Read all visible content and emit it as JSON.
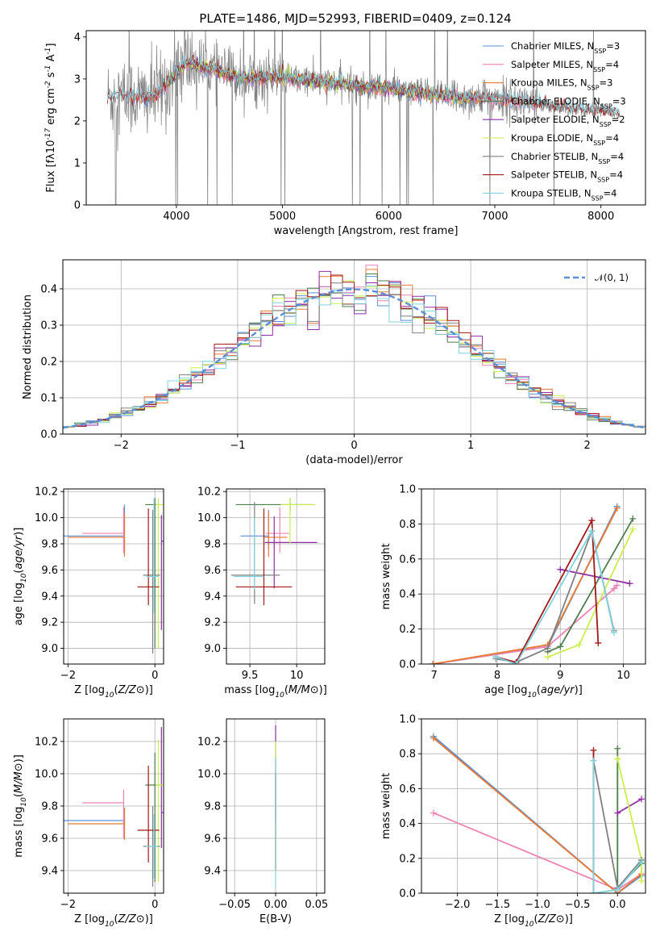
{
  "colors": {
    "chabrier_miles": "#5b8ed8",
    "salpeter_miles": "#ee82b4",
    "kroupa_miles": "#e87a34",
    "chabrier_elodie": "#4e7d4e",
    "salpeter_elodie": "#8e2ea3",
    "kroupa_elodie": "#c9f04a",
    "chabrier_stelib": "#808080",
    "salpeter_stelib": "#a31717",
    "kroupa_stelib": "#7fd4e0",
    "data": "#808080",
    "normal": "#5b8ed8"
  },
  "chart_data": [
    {
      "id": "spectrum",
      "type": "line",
      "title": "PLATE=1486, MJD=52993, FIBERID=0409, z=0.124",
      "xlabel": "wavelength [Angstrom, rest frame]",
      "ylabel": "Flux [f$_\\lambda$10$^{-17}$ erg cm$^{-2}$ s$^{-1}$ A$^{-1}$]",
      "xlim": [
        3150,
        8420
      ],
      "ylim": [
        0,
        4.15
      ],
      "xticks": [
        4000,
        5000,
        6000,
        7000,
        8000
      ],
      "yticks": [
        0,
        1,
        2,
        3,
        4
      ],
      "grid": false,
      "legend_position": "upper-right",
      "legend": [
        {
          "key": "chabrier_miles",
          "label": "Chabrier MILES, N",
          "sub": "SSP",
          "tail": "=3"
        },
        {
          "key": "salpeter_miles",
          "label": "Salpeter MILES, N",
          "sub": "SSP",
          "tail": "=4"
        },
        {
          "key": "kroupa_miles",
          "label": "Kroupa MILES, N",
          "sub": "SSP",
          "tail": "=3"
        },
        {
          "key": "chabrier_elodie",
          "label": "Chabrier ELODIE, N",
          "sub": "SSP",
          "tail": "=3"
        },
        {
          "key": "salpeter_elodie",
          "label": "Salpeter ELODIE, N",
          "sub": "SSP",
          "tail": "=2"
        },
        {
          "key": "kroupa_elodie",
          "label": "Kroupa ELODIE, N",
          "sub": "SSP",
          "tail": "=4"
        },
        {
          "key": "chabrier_stelib",
          "label": "Chabrier STELIB, N",
          "sub": "SSP",
          "tail": "=4"
        },
        {
          "key": "salpeter_stelib",
          "label": "Salpeter STELIB, N",
          "sub": "SSP",
          "tail": "=4"
        },
        {
          "key": "kroupa_stelib",
          "label": "Kroupa STELIB, N",
          "sub": "SSP",
          "tail": "=4"
        }
      ],
      "continuum": {
        "x": [
          3350,
          3500,
          3650,
          3800,
          3950,
          4100,
          4300,
          4500,
          4700,
          4900,
          5100,
          5300,
          5500,
          5700,
          5900,
          6100,
          6300,
          6500,
          6700,
          6900,
          7100,
          7300,
          7500,
          7700,
          7900,
          8100,
          8180
        ],
        "y": [
          2.55,
          2.6,
          2.55,
          2.6,
          3.0,
          3.4,
          3.25,
          3.1,
          3.0,
          3.05,
          3.0,
          2.95,
          2.9,
          2.85,
          2.8,
          2.75,
          2.65,
          2.6,
          2.55,
          2.55,
          2.5,
          2.45,
          2.35,
          2.3,
          2.25,
          2.2,
          2.15
        ]
      }
    },
    {
      "id": "residuals",
      "type": "histogram",
      "xlabel": "(data-model)/error",
      "ylabel": "Normed distribution",
      "xlim": [
        -2.5,
        2.5
      ],
      "ylim": [
        0,
        0.48
      ],
      "xticks": [
        -2,
        -1,
        0,
        1,
        2
      ],
      "yticks": [
        0.0,
        0.1,
        0.2,
        0.3,
        0.4
      ],
      "grid": true,
      "legend_position": "upper-right",
      "legend_label": "𝒩(0, 1)",
      "bin_width": 0.1
    },
    {
      "id": "age_vs_Z",
      "type": "errorbar",
      "xlabel": "Z [log$_{10}$($Z/Z_\\odot$)]",
      "ylabel": "age  [log$_{10}$($age/yr$)]",
      "xlim": [
        -2.1,
        0.2
      ],
      "ylim": [
        8.88,
        10.22
      ],
      "xticks": [
        -2,
        0
      ],
      "yticks": [
        9.0,
        9.2,
        9.4,
        9.6,
        9.8,
        10.0,
        10.2
      ],
      "grid": true,
      "points": [
        {
          "key": "chabrier_miles",
          "x": -0.7,
          "xerr": [
            1.4,
            0
          ],
          "y": 9.86,
          "yerr": [
            0.15,
            0.24
          ]
        },
        {
          "key": "salpeter_miles",
          "x": -0.72,
          "xerr": [
            0.95,
            0
          ],
          "y": 9.88,
          "yerr": [
            0.15,
            0.2
          ]
        },
        {
          "key": "kroupa_miles",
          "x": -0.7,
          "xerr": [
            1.3,
            0
          ],
          "y": 9.85,
          "yerr": [
            0.15,
            0.18
          ]
        },
        {
          "key": "chabrier_elodie",
          "x": 0.0,
          "xerr": [
            0.22,
            0.12
          ],
          "y": 10.1,
          "yerr": [
            1.1,
            0.05
          ]
        },
        {
          "key": "salpeter_elodie",
          "x": 0.15,
          "xerr": [
            0.0,
            0.2
          ],
          "y": 9.82,
          "yerr": [
            0.68,
            0.2
          ]
        },
        {
          "key": "kroupa_elodie",
          "x": 0.08,
          "xerr": [
            0.06,
            0.18
          ],
          "y": 10.1,
          "yerr": [
            1.1,
            0.05
          ]
        },
        {
          "key": "chabrier_stelib",
          "x": -0.05,
          "xerr": [
            0.22,
            0.17
          ],
          "y": 9.56,
          "yerr": [
            0.6,
            0.5
          ]
        },
        {
          "key": "salpeter_stelib",
          "x": -0.15,
          "xerr": [
            0.25,
            0.25
          ],
          "y": 9.47,
          "yerr": [
            0.14,
            0.6
          ]
        },
        {
          "key": "kroupa_stelib",
          "x": -0.02,
          "xerr": [
            0.18,
            0.1
          ],
          "y": 9.55,
          "yerr": [
            0.28,
            0.6
          ]
        }
      ]
    },
    {
      "id": "age_vs_mass",
      "type": "errorbar",
      "xlabel": "mass [log$_{10}$($M/M_\\odot$)]",
      "ylabel": "",
      "xlim": [
        9.25,
        10.3
      ],
      "ylim": [
        8.88,
        10.22
      ],
      "xticks": [
        9.5,
        10.0
      ],
      "yticks": [
        9.0,
        9.2,
        9.4,
        9.6,
        9.8,
        10.0,
        10.2
      ],
      "grid": true,
      "points": [
        {
          "key": "chabrier_miles",
          "x": 9.7,
          "xerr": [
            0.3,
            0.0
          ],
          "y": 9.86,
          "yerr": [
            0.1,
            0.2
          ]
        },
        {
          "key": "salpeter_miles",
          "x": 9.82,
          "xerr": [
            0.15,
            0.1
          ],
          "y": 9.88,
          "yerr": [
            0.15,
            0.2
          ]
        },
        {
          "key": "kroupa_miles",
          "x": 9.7,
          "xerr": [
            0.05,
            0.2
          ],
          "y": 9.85,
          "yerr": [
            0.15,
            0.2
          ]
        },
        {
          "key": "chabrier_elodie",
          "x": 9.93,
          "xerr": [
            0.58,
            0.25
          ],
          "y": 10.1,
          "yerr": [
            0.05,
            0.05
          ]
        },
        {
          "key": "salpeter_elodie",
          "x": 9.76,
          "xerr": [
            0.1,
            0.46
          ],
          "y": 9.81,
          "yerr": [
            0.35,
            0.2
          ]
        },
        {
          "key": "kroupa_elodie",
          "x": 9.93,
          "xerr": [
            0.1,
            0.27
          ],
          "y": 10.1,
          "yerr": [
            0.3,
            0.05
          ]
        },
        {
          "key": "chabrier_stelib",
          "x": 9.55,
          "xerr": [
            0.25,
            0.27
          ],
          "y": 9.56,
          "yerr": [
            0.22,
            0.56
          ]
        },
        {
          "key": "salpeter_stelib",
          "x": 9.65,
          "xerr": [
            0.3,
            0.3
          ],
          "y": 9.47,
          "yerr": [
            0.14,
            0.6
          ]
        },
        {
          "key": "kroupa_stelib",
          "x": 9.55,
          "xerr": [
            0.22,
            0.1
          ],
          "y": 9.55,
          "yerr": [
            0.1,
            0.45
          ]
        }
      ]
    },
    {
      "id": "weight_vs_age",
      "type": "line",
      "xlabel": "age  [log$_{10}$($age/yr$)]",
      "ylabel": "mass weight",
      "xlim": [
        6.8,
        10.35
      ],
      "ylim": [
        0,
        1.0
      ],
      "xticks": [
        7,
        8,
        9,
        10
      ],
      "yticks": [
        0.0,
        0.2,
        0.4,
        0.6,
        0.8,
        1.0
      ],
      "grid": true,
      "series": [
        {
          "key": "chabrier_miles",
          "x": [
            6.98,
            8.8,
            9.9
          ],
          "y": [
            0.0,
            0.1,
            0.9
          ]
        },
        {
          "key": "salpeter_miles",
          "x": [
            6.98,
            8.8,
            9.85,
            9.9
          ],
          "y": [
            0.0,
            0.1,
            0.43,
            0.45
          ]
        },
        {
          "key": "kroupa_miles",
          "x": [
            6.98,
            8.8,
            9.9
          ],
          "y": [
            0.0,
            0.11,
            0.89
          ]
        },
        {
          "key": "chabrier_elodie",
          "x": [
            8.8,
            9.0,
            10.15
          ],
          "y": [
            0.07,
            0.1,
            0.83
          ]
        },
        {
          "key": "salpeter_elodie",
          "x": [
            9.0,
            10.1
          ],
          "y": [
            0.54,
            0.46
          ]
        },
        {
          "key": "kroupa_elodie",
          "x": [
            8.8,
            9.3,
            10.15
          ],
          "y": [
            0.04,
            0.11,
            0.77
          ]
        },
        {
          "key": "chabrier_stelib",
          "x": [
            7.98,
            8.3,
            8.8,
            9.5,
            9.85
          ],
          "y": [
            0.03,
            0.01,
            0.09,
            0.76,
            0.19
          ]
        },
        {
          "key": "salpeter_stelib",
          "x": [
            7.98,
            8.3,
            9.5,
            9.6
          ],
          "y": [
            0.04,
            0.01,
            0.82,
            0.12
          ]
        },
        {
          "key": "kroupa_stelib",
          "x": [
            7.98,
            8.3,
            9.5,
            9.85
          ],
          "y": [
            0.04,
            0.0,
            0.76,
            0.18
          ]
        }
      ]
    },
    {
      "id": "mass_vs_Z",
      "type": "errorbar",
      "xlabel": "Z [log$_{10}$($Z/Z_\\odot$)]",
      "ylabel": "mass [log$_{10}$($M/M_\\odot$)]",
      "xlim": [
        -2.1,
        0.2
      ],
      "ylim": [
        9.26,
        10.34
      ],
      "xticks": [
        -2,
        0
      ],
      "yticks": [
        9.4,
        9.6,
        9.8,
        10.0,
        10.2
      ],
      "grid": true,
      "points": [
        {
          "key": "chabrier_miles",
          "x": -0.7,
          "xerr": [
            1.4,
            0
          ],
          "y": 9.71,
          "yerr": [
            0.08,
            0.08
          ]
        },
        {
          "key": "salpeter_miles",
          "x": -0.72,
          "xerr": [
            0.95,
            0
          ],
          "y": 9.82,
          "yerr": [
            0.22,
            0.08
          ]
        },
        {
          "key": "kroupa_miles",
          "x": -0.7,
          "xerr": [
            1.3,
            0
          ],
          "y": 9.69,
          "yerr": [
            0.1,
            0.1
          ]
        },
        {
          "key": "chabrier_elodie",
          "x": 0.0,
          "xerr": [
            0.22,
            0.12
          ],
          "y": 9.93,
          "yerr": [
            0.6,
            0.2
          ]
        },
        {
          "key": "salpeter_elodie",
          "x": 0.15,
          "xerr": [
            0.0,
            0.2
          ],
          "y": 9.76,
          "yerr": [
            0.22,
            0.53
          ]
        },
        {
          "key": "kroupa_elodie",
          "x": 0.08,
          "xerr": [
            0.06,
            0.18
          ],
          "y": 9.93,
          "yerr": [
            0.6,
            0.28
          ]
        },
        {
          "key": "chabrier_stelib",
          "x": -0.05,
          "xerr": [
            0.22,
            0.17
          ],
          "y": 9.55,
          "yerr": [
            0.25,
            0.25
          ]
        },
        {
          "key": "salpeter_stelib",
          "x": -0.15,
          "xerr": [
            0.25,
            0.25
          ],
          "y": 9.65,
          "yerr": [
            0.2,
            0.4
          ]
        },
        {
          "key": "kroupa_stelib",
          "x": -0.02,
          "xerr": [
            0.18,
            0.1
          ],
          "y": 9.55,
          "yerr": [
            0.2,
            0.2
          ]
        }
      ]
    },
    {
      "id": "mass_vs_ebv",
      "type": "errorbar",
      "xlabel": "E(B-V)",
      "ylabel": "",
      "xlim": [
        -0.06,
        0.06
      ],
      "ylim": [
        9.26,
        10.34
      ],
      "xticks": [
        -0.05,
        0.0,
        0.05
      ],
      "xticklabels": [
        "−0.05",
        "0.00",
        "0.05"
      ],
      "yticks": [
        9.4,
        9.6,
        9.8,
        10.0,
        10.2
      ],
      "grid": true,
      "points": [
        {
          "key": "chabrier_miles",
          "x": 0.0,
          "xerr": [
            0,
            0
          ],
          "y": 9.71,
          "yerr": [
            0.3,
            0.3
          ]
        },
        {
          "key": "salpeter_elodie",
          "x": 0.0,
          "xerr": [
            0,
            0
          ],
          "y": 10.1,
          "yerr": [
            0.4,
            0.2
          ]
        },
        {
          "key": "kroupa_elodie",
          "x": 0.0,
          "xerr": [
            0,
            0
          ],
          "y": 10.0,
          "yerr": [
            0.6,
            0.2
          ]
        },
        {
          "key": "salpeter_stelib",
          "x": 0.0,
          "xerr": [
            0,
            0
          ],
          "y": 9.9,
          "yerr": [
            0.5,
            0.1
          ]
        },
        {
          "key": "kroupa_stelib",
          "x": 0.0,
          "xerr": [
            0,
            0
          ],
          "y": 9.6,
          "yerr": [
            0.3,
            0.5
          ]
        }
      ]
    },
    {
      "id": "weight_vs_Z",
      "type": "line",
      "xlabel": "Z [log$_{10}$($Z/Z_\\odot$)]",
      "ylabel": "mass weight",
      "xlim": [
        -2.45,
        0.35
      ],
      "ylim": [
        0,
        1.0
      ],
      "xticks": [
        -2.0,
        -1.5,
        -1.0,
        -0.5,
        0.0
      ],
      "xticklabels": [
        "−2.0",
        "−1.5",
        "−1.0",
        "−0.5",
        "0.0"
      ],
      "yticks": [
        0.0,
        0.2,
        0.4,
        0.6,
        0.8,
        1.0
      ],
      "grid": true,
      "series": [
        {
          "key": "chabrier_miles",
          "x": [
            -2.3,
            0.0,
            0.3
          ],
          "y": [
            0.9,
            0.0,
            0.1
          ]
        },
        {
          "key": "salpeter_miles",
          "x": [
            -2.3,
            0.0,
            0.3
          ],
          "y": [
            0.46,
            0.02,
            0.11
          ]
        },
        {
          "key": "kroupa_miles",
          "x": [
            -2.3,
            0.0,
            0.3
          ],
          "y": [
            0.89,
            0.0,
            0.11
          ]
        },
        {
          "key": "chabrier_elodie",
          "x": [
            0.0,
            0.0,
            0.3
          ],
          "y": [
            0.83,
            0.03,
            0.17
          ]
        },
        {
          "key": "salpeter_elodie",
          "x": [
            0.0,
            0.3
          ],
          "y": [
            0.46,
            0.54
          ]
        },
        {
          "key": "kroupa_elodie",
          "x": [
            0.0,
            0.3,
            0.3
          ],
          "y": [
            0.77,
            0.19,
            0.07
          ]
        },
        {
          "key": "chabrier_stelib",
          "x": [
            -0.3,
            0.0,
            0.3
          ],
          "y": [
            0.76,
            0.03,
            0.19
          ]
        },
        {
          "key": "salpeter_stelib",
          "x": [
            -0.3,
            -0.3
          ],
          "y": [
            0.82,
            0.0
          ]
        },
        {
          "key": "kroupa_stelib",
          "x": [
            -0.3,
            -0.3,
            0.0,
            0.3
          ],
          "y": [
            0.76,
            0.0,
            0.02,
            0.18
          ]
        }
      ]
    }
  ]
}
